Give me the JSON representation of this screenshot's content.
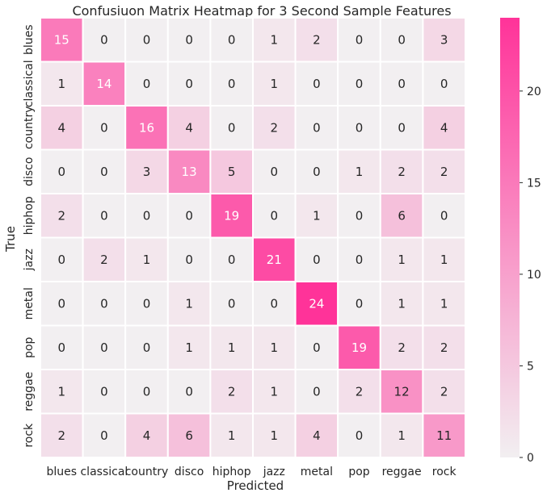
{
  "chart_data": {
    "type": "heatmap",
    "title": "Confusiuon Matrix Heatmap for 3 Second Sample Features",
    "xlabel": "Predicted",
    "ylabel": "True",
    "x_categories": [
      "blues",
      "classical",
      "country",
      "disco",
      "hiphop",
      "jazz",
      "metal",
      "pop",
      "reggae",
      "rock"
    ],
    "y_categories": [
      "blues",
      "classical",
      "country",
      "disco",
      "hiphop",
      "jazz",
      "metal",
      "pop",
      "reggae",
      "rock"
    ],
    "values": [
      [
        15,
        0,
        0,
        0,
        0,
        1,
        2,
        0,
        0,
        3
      ],
      [
        1,
        14,
        0,
        0,
        0,
        1,
        0,
        0,
        0,
        0
      ],
      [
        4,
        0,
        16,
        4,
        0,
        2,
        0,
        0,
        0,
        4
      ],
      [
        0,
        0,
        3,
        13,
        5,
        0,
        0,
        1,
        2,
        2
      ],
      [
        2,
        0,
        0,
        0,
        19,
        0,
        1,
        0,
        6,
        0
      ],
      [
        0,
        2,
        1,
        0,
        0,
        21,
        0,
        0,
        1,
        1
      ],
      [
        0,
        0,
        0,
        1,
        0,
        0,
        24,
        0,
        1,
        1
      ],
      [
        0,
        0,
        0,
        1,
        1,
        1,
        0,
        19,
        2,
        2
      ],
      [
        1,
        0,
        0,
        0,
        2,
        1,
        0,
        2,
        12,
        2
      ],
      [
        2,
        0,
        4,
        6,
        1,
        1,
        4,
        0,
        1,
        11
      ]
    ],
    "colorbar": {
      "min": 0,
      "max": 24,
      "ticks": [
        0,
        5,
        10,
        15,
        20
      ],
      "low_color": "#f2eff1",
      "high_color": "#ff3399"
    },
    "grid": false,
    "legend": "colorbar-right"
  }
}
